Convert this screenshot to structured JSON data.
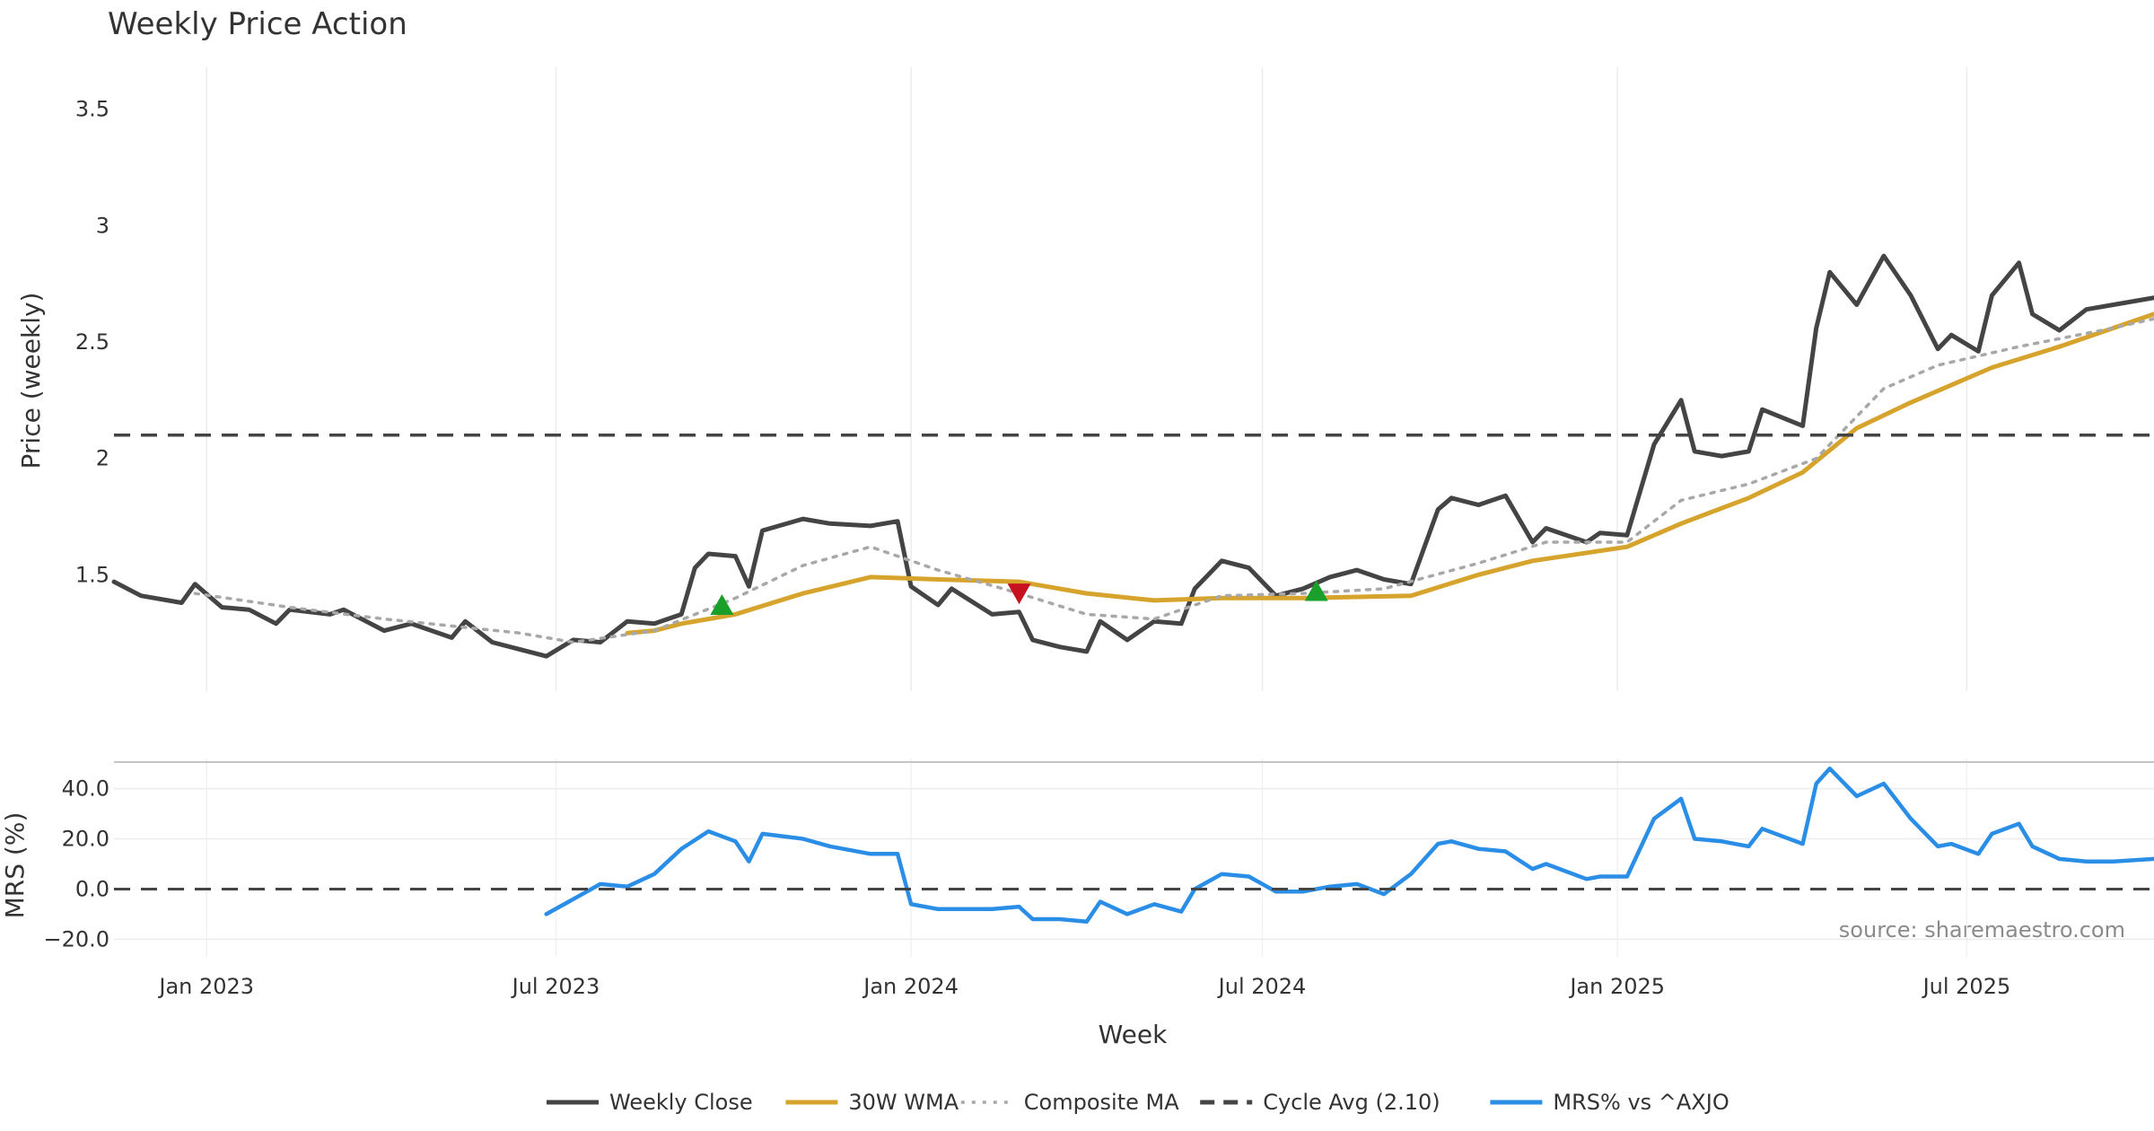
{
  "chart_data": [
    {
      "type": "line",
      "title": "Weekly Price Action",
      "xlabel": "",
      "ylabel": "Price (weekly)",
      "x_range": [
        "2022-11-14",
        "2025-10-06"
      ],
      "ylim": [
        1.0,
        3.68
      ],
      "y_ticks": [
        1.5,
        2,
        2.5,
        3,
        3.5
      ],
      "y_tick_labels": [
        "1.5",
        "2",
        "2.5",
        "3",
        "3.5"
      ],
      "grid": "vertical",
      "series": [
        {
          "name": "Weekly Close",
          "color": "#444444",
          "style": "solid",
          "points": [
            [
              "2022-11-14",
              1.47
            ],
            [
              "2022-11-28",
              1.41
            ],
            [
              "2022-12-19",
              1.38
            ],
            [
              "2022-12-26",
              1.46
            ],
            [
              "2023-01-09",
              1.36
            ],
            [
              "2023-01-23",
              1.35
            ],
            [
              "2023-02-06",
              1.29
            ],
            [
              "2023-02-13",
              1.35
            ],
            [
              "2023-03-06",
              1.33
            ],
            [
              "2023-03-13",
              1.35
            ],
            [
              "2023-04-03",
              1.26
            ],
            [
              "2023-04-17",
              1.29
            ],
            [
              "2023-05-08",
              1.23
            ],
            [
              "2023-05-15",
              1.3
            ],
            [
              "2023-05-29",
              1.21
            ],
            [
              "2023-06-12",
              1.18
            ],
            [
              "2023-06-26",
              1.15
            ],
            [
              "2023-07-10",
              1.22
            ],
            [
              "2023-07-24",
              1.21
            ],
            [
              "2023-08-07",
              1.3
            ],
            [
              "2023-08-21",
              1.29
            ],
            [
              "2023-09-04",
              1.33
            ],
            [
              "2023-09-11",
              1.53
            ],
            [
              "2023-09-18",
              1.59
            ],
            [
              "2023-10-02",
              1.58
            ],
            [
              "2023-10-09",
              1.45
            ],
            [
              "2023-10-16",
              1.69
            ],
            [
              "2023-11-06",
              1.74
            ],
            [
              "2023-11-20",
              1.72
            ],
            [
              "2023-12-11",
              1.71
            ],
            [
              "2023-12-25",
              1.73
            ],
            [
              "2024-01-01",
              1.45
            ],
            [
              "2024-01-15",
              1.37
            ],
            [
              "2024-01-22",
              1.44
            ],
            [
              "2024-02-12",
              1.33
            ],
            [
              "2024-02-26",
              1.34
            ],
            [
              "2024-03-04",
              1.22
            ],
            [
              "2024-03-18",
              1.19
            ],
            [
              "2024-04-01",
              1.17
            ],
            [
              "2024-04-08",
              1.3
            ],
            [
              "2024-04-22",
              1.22
            ],
            [
              "2024-05-06",
              1.3
            ],
            [
              "2024-05-20",
              1.29
            ],
            [
              "2024-05-27",
              1.44
            ],
            [
              "2024-06-10",
              1.56
            ],
            [
              "2024-06-24",
              1.53
            ],
            [
              "2024-07-08",
              1.41
            ],
            [
              "2024-07-22",
              1.44
            ],
            [
              "2024-08-05",
              1.49
            ],
            [
              "2024-08-19",
              1.52
            ],
            [
              "2024-09-02",
              1.48
            ],
            [
              "2024-09-16",
              1.46
            ],
            [
              "2024-09-30",
              1.78
            ],
            [
              "2024-10-07",
              1.83
            ],
            [
              "2024-10-21",
              1.8
            ],
            [
              "2024-11-04",
              1.84
            ],
            [
              "2024-11-18",
              1.64
            ],
            [
              "2024-11-25",
              1.7
            ],
            [
              "2024-12-16",
              1.64
            ],
            [
              "2024-12-23",
              1.68
            ],
            [
              "2025-01-06",
              1.67
            ],
            [
              "2025-01-20",
              2.06
            ],
            [
              "2025-02-03",
              2.25
            ],
            [
              "2025-02-10",
              2.03
            ],
            [
              "2025-02-24",
              2.01
            ],
            [
              "2025-03-10",
              2.03
            ],
            [
              "2025-03-17",
              2.21
            ],
            [
              "2025-04-07",
              2.14
            ],
            [
              "2025-04-14",
              2.56
            ],
            [
              "2025-04-21",
              2.8
            ],
            [
              "2025-05-05",
              2.66
            ],
            [
              "2025-05-19",
              2.87
            ],
            [
              "2025-06-02",
              2.7
            ],
            [
              "2025-06-16",
              2.47
            ],
            [
              "2025-06-23",
              2.53
            ],
            [
              "2025-07-07",
              2.46
            ],
            [
              "2025-07-14",
              2.7
            ],
            [
              "2025-07-28",
              2.84
            ],
            [
              "2025-08-04",
              2.62
            ],
            [
              "2025-08-18",
              2.55
            ],
            [
              "2025-09-01",
              2.64
            ],
            [
              "2025-09-15",
              2.66
            ],
            [
              "2025-10-06",
              2.69
            ]
          ]
        },
        {
          "name": "30W WMA",
          "color": "#d6a32c",
          "style": "solid",
          "points": [
            [
              "2023-08-07",
              1.25
            ],
            [
              "2023-08-21",
              1.26
            ],
            [
              "2023-09-04",
              1.29
            ],
            [
              "2023-10-02",
              1.33
            ],
            [
              "2023-11-06",
              1.42
            ],
            [
              "2023-12-11",
              1.49
            ],
            [
              "2024-01-15",
              1.48
            ],
            [
              "2024-02-26",
              1.47
            ],
            [
              "2024-04-01",
              1.42
            ],
            [
              "2024-05-06",
              1.39
            ],
            [
              "2024-06-10",
              1.4
            ],
            [
              "2024-07-22",
              1.4
            ],
            [
              "2024-09-16",
              1.41
            ],
            [
              "2024-10-21",
              1.5
            ],
            [
              "2024-11-18",
              1.56
            ],
            [
              "2025-01-06",
              1.62
            ],
            [
              "2025-02-03",
              1.72
            ],
            [
              "2025-03-10",
              1.83
            ],
            [
              "2025-04-07",
              1.94
            ],
            [
              "2025-05-05",
              2.13
            ],
            [
              "2025-06-02",
              2.24
            ],
            [
              "2025-07-14",
              2.39
            ],
            [
              "2025-08-18",
              2.48
            ],
            [
              "2025-10-06",
              2.62
            ]
          ]
        },
        {
          "name": "Composite MA",
          "color": "#a8a8a8",
          "style": "dotted",
          "points": [
            [
              "2022-12-26",
              1.42
            ],
            [
              "2023-02-13",
              1.36
            ],
            [
              "2023-04-03",
              1.31
            ],
            [
              "2023-06-12",
              1.25
            ],
            [
              "2023-07-10",
              1.21
            ],
            [
              "2023-08-21",
              1.26
            ],
            [
              "2023-10-02",
              1.4
            ],
            [
              "2023-11-06",
              1.54
            ],
            [
              "2023-12-11",
              1.62
            ],
            [
              "2024-01-15",
              1.52
            ],
            [
              "2024-02-26",
              1.42
            ],
            [
              "2024-04-01",
              1.33
            ],
            [
              "2024-05-06",
              1.31
            ],
            [
              "2024-06-10",
              1.41
            ],
            [
              "2024-07-22",
              1.42
            ],
            [
              "2024-09-02",
              1.44
            ],
            [
              "2024-10-21",
              1.55
            ],
            [
              "2024-11-25",
              1.64
            ],
            [
              "2025-01-06",
              1.64
            ],
            [
              "2025-02-03",
              1.82
            ],
            [
              "2025-03-10",
              1.89
            ],
            [
              "2025-04-14",
              2.0
            ],
            [
              "2025-05-19",
              2.3
            ],
            [
              "2025-06-16",
              2.4
            ],
            [
              "2025-07-28",
              2.48
            ],
            [
              "2025-09-15",
              2.56
            ],
            [
              "2025-10-06",
              2.6
            ]
          ]
        },
        {
          "name": "Cycle Avg (2.10)",
          "color": "#444444",
          "style": "dashed",
          "constant": 2.1
        }
      ],
      "markers": [
        {
          "type": "buy",
          "x": "2023-09-25",
          "y": 1.37,
          "color": "#1a9f2a"
        },
        {
          "type": "sell",
          "x": "2024-02-26",
          "y": 1.42,
          "color": "#c8111e"
        },
        {
          "type": "buy",
          "x": "2024-07-29",
          "y": 1.43,
          "color": "#1a9f2a"
        }
      ]
    },
    {
      "type": "line",
      "xlabel": "Week",
      "ylabel": "MRS (%)",
      "x_range": [
        "2022-11-14",
        "2025-10-06"
      ],
      "ylim": [
        -27,
        52
      ],
      "y_ticks": [
        -20,
        0,
        20,
        40
      ],
      "y_tick_labels": [
        "−20.0",
        "0.0",
        "20.0",
        "40.0"
      ],
      "x_ticks": [
        "2023-01-01",
        "2023-07-01",
        "2024-01-01",
        "2024-07-01",
        "2025-01-01",
        "2025-07-01"
      ],
      "x_tick_labels": [
        "Jan 2023",
        "Jul 2023",
        "Jan 2024",
        "Jul 2024",
        "Jan 2025",
        "Jul 2025"
      ],
      "series": [
        {
          "name": "MRS% vs ^AXJO",
          "color": "#2b8ee6",
          "style": "solid",
          "points": [
            [
              "2023-06-26",
              -10
            ],
            [
              "2023-07-10",
              -4
            ],
            [
              "2023-07-24",
              2
            ],
            [
              "2023-08-07",
              1
            ],
            [
              "2023-08-21",
              6
            ],
            [
              "2023-09-04",
              16
            ],
            [
              "2023-09-18",
              23
            ],
            [
              "2023-10-02",
              19
            ],
            [
              "2023-10-09",
              11
            ],
            [
              "2023-10-16",
              22
            ],
            [
              "2023-11-06",
              20
            ],
            [
              "2023-11-20",
              17
            ],
            [
              "2023-12-11",
              14
            ],
            [
              "2023-12-25",
              14
            ],
            [
              "2024-01-01",
              -6
            ],
            [
              "2024-01-15",
              -8
            ],
            [
              "2024-02-12",
              -8
            ],
            [
              "2024-02-26",
              -7
            ],
            [
              "2024-03-04",
              -12
            ],
            [
              "2024-03-18",
              -12
            ],
            [
              "2024-04-01",
              -13
            ],
            [
              "2024-04-08",
              -5
            ],
            [
              "2024-04-22",
              -10
            ],
            [
              "2024-05-06",
              -6
            ],
            [
              "2024-05-20",
              -9
            ],
            [
              "2024-05-27",
              0
            ],
            [
              "2024-06-10",
              6
            ],
            [
              "2024-06-24",
              5
            ],
            [
              "2024-07-08",
              -1
            ],
            [
              "2024-07-22",
              -1
            ],
            [
              "2024-08-05",
              1
            ],
            [
              "2024-08-19",
              2
            ],
            [
              "2024-09-02",
              -2
            ],
            [
              "2024-09-16",
              6
            ],
            [
              "2024-09-30",
              18
            ],
            [
              "2024-10-07",
              19
            ],
            [
              "2024-10-21",
              16
            ],
            [
              "2024-11-04",
              15
            ],
            [
              "2024-11-18",
              8
            ],
            [
              "2024-11-25",
              10
            ],
            [
              "2024-12-16",
              4
            ],
            [
              "2024-12-23",
              5
            ],
            [
              "2025-01-06",
              5
            ],
            [
              "2025-01-20",
              28
            ],
            [
              "2025-02-03",
              36
            ],
            [
              "2025-02-10",
              20
            ],
            [
              "2025-02-24",
              19
            ],
            [
              "2025-03-10",
              17
            ],
            [
              "2025-03-17",
              24
            ],
            [
              "2025-04-07",
              18
            ],
            [
              "2025-04-14",
              42
            ],
            [
              "2025-04-21",
              48
            ],
            [
              "2025-05-05",
              37
            ],
            [
              "2025-05-19",
              42
            ],
            [
              "2025-06-02",
              28
            ],
            [
              "2025-06-16",
              17
            ],
            [
              "2025-06-23",
              18
            ],
            [
              "2025-07-07",
              14
            ],
            [
              "2025-07-14",
              22
            ],
            [
              "2025-07-28",
              26
            ],
            [
              "2025-08-04",
              17
            ],
            [
              "2025-08-18",
              12
            ],
            [
              "2025-09-01",
              11
            ],
            [
              "2025-09-15",
              11
            ],
            [
              "2025-10-06",
              12
            ]
          ]
        },
        {
          "name": "",
          "color": "#444444",
          "style": "dashed",
          "constant": 0
        }
      ],
      "annotation": "source: sharemaestro.com"
    }
  ],
  "legend": {
    "placement": "bottom",
    "items": [
      {
        "label": "Weekly Close",
        "color": "#444444",
        "style": "solid"
      },
      {
        "label": "30W WMA",
        "color": "#d6a32c",
        "style": "solid"
      },
      {
        "label": "Composite MA",
        "color": "#a8a8a8",
        "style": "dotted"
      },
      {
        "label": "Cycle Avg (2.10)",
        "color": "#444444",
        "style": "dashed"
      },
      {
        "label": "MRS% vs ^AXJO",
        "color": "#2b8ee6",
        "style": "solid"
      }
    ]
  }
}
